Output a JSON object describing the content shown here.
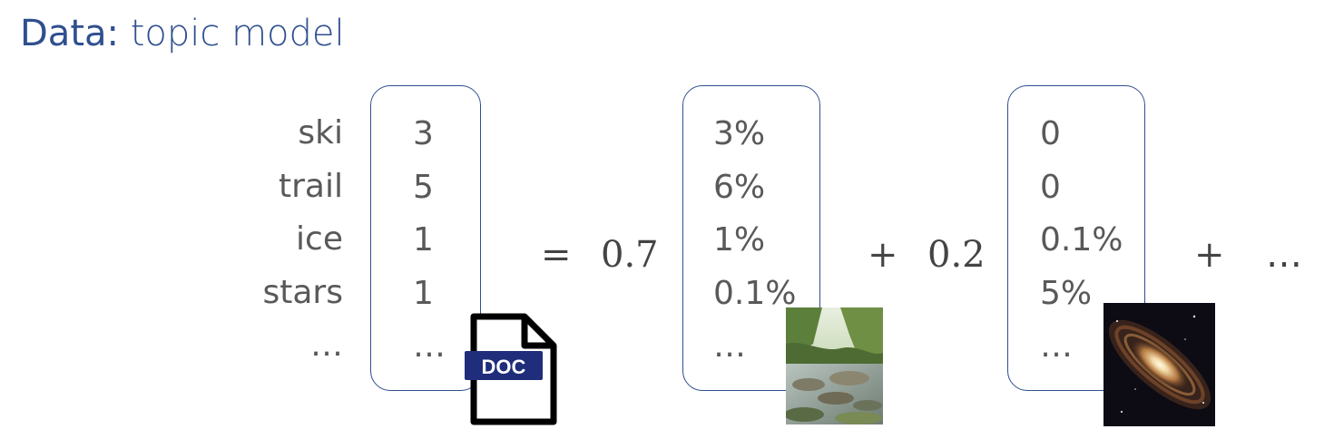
{
  "title": {
    "strong": "Data:",
    "rest": " topic model"
  },
  "words": [
    "ski",
    "trail",
    "ice",
    "stars",
    "…"
  ],
  "doc_vector": [
    "3",
    "5",
    "1",
    "1",
    "…"
  ],
  "equation": {
    "equals": "=",
    "coef1": "0.7",
    "plus1": "+",
    "coef2": "0.2",
    "plus2": "+",
    "trailing": "…"
  },
  "topic1_vector": [
    "3%",
    "6%",
    "1%",
    "0.1%",
    "…"
  ],
  "topic2_vector": [
    "0",
    "0",
    "0.1%",
    "5%",
    "…"
  ],
  "doc_icon": {
    "name": "document-icon",
    "label": "DOC",
    "badge_color": "#1f2d7a"
  },
  "topic1_image": "nature-stream-photo",
  "topic2_image": "galaxy-photo",
  "colors": {
    "accent": "#2f4f8f",
    "text": "#595959"
  }
}
